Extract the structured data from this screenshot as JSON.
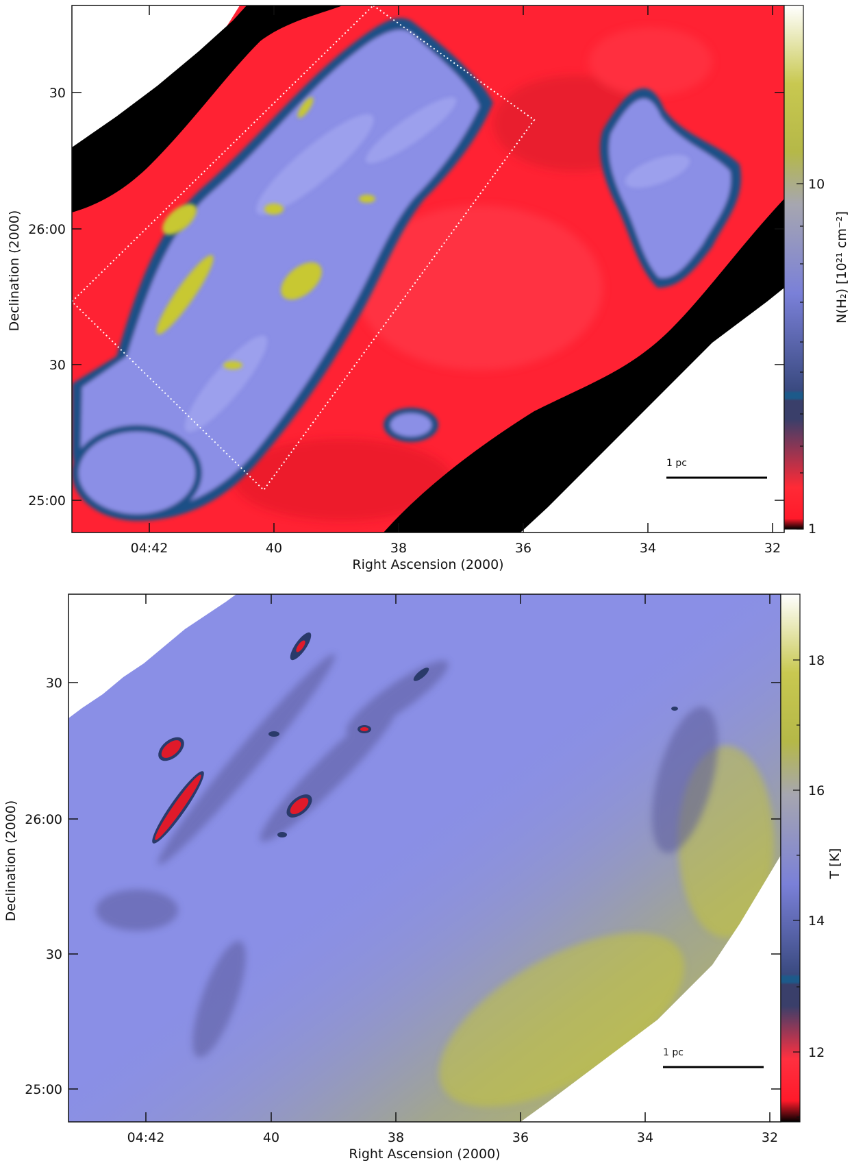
{
  "panels": [
    {
      "id": "column-density",
      "xlabel": "Right Ascension (2000)",
      "ylabel": "Declination (2000)",
      "x_ticks": [
        "04:42",
        "40",
        "38",
        "36",
        "34",
        "32"
      ],
      "y_ticks": [
        "30",
        "26:00",
        "30",
        "25:00"
      ],
      "colorbar": {
        "label": "N(H₂) [10²¹ cm⁻²]",
        "ticks": [
          "10",
          "1"
        ],
        "scale": "log",
        "stops": [
          "#000000",
          "#ff1a2a",
          "#3a3f6a",
          "#1d5a8a",
          "#8a8fe0",
          "#b8bb3a",
          "#ffffff"
        ]
      },
      "scalebar_label": "1 pc",
      "colors": {
        "background": "#ff2233",
        "void": "#000000",
        "cloud": "#8b8fe6",
        "dense": "#c8c832",
        "contour": "#1e4f86"
      }
    },
    {
      "id": "temperature",
      "xlabel": "Right Ascension (2000)",
      "ylabel": "Declination (2000)",
      "x_ticks": [
        "04:42",
        "40",
        "38",
        "36",
        "34",
        "32"
      ],
      "y_ticks": [
        "30",
        "26:00",
        "30",
        "25:00"
      ],
      "colorbar": {
        "label": "T [K]",
        "ticks": [
          "18",
          "16",
          "14",
          "12"
        ],
        "scale": "linear",
        "stops": [
          "#000000",
          "#ff1a2a",
          "#3a3f6a",
          "#1d5a8a",
          "#8a8fe0",
          "#b8bb3a",
          "#ffffff"
        ]
      },
      "scalebar_label": "1 pc",
      "colors": {
        "background": "#8a8fe6",
        "warm": "#c8c832",
        "cold": "#e01a2a",
        "dark": "#5a5a9a"
      }
    }
  ]
}
